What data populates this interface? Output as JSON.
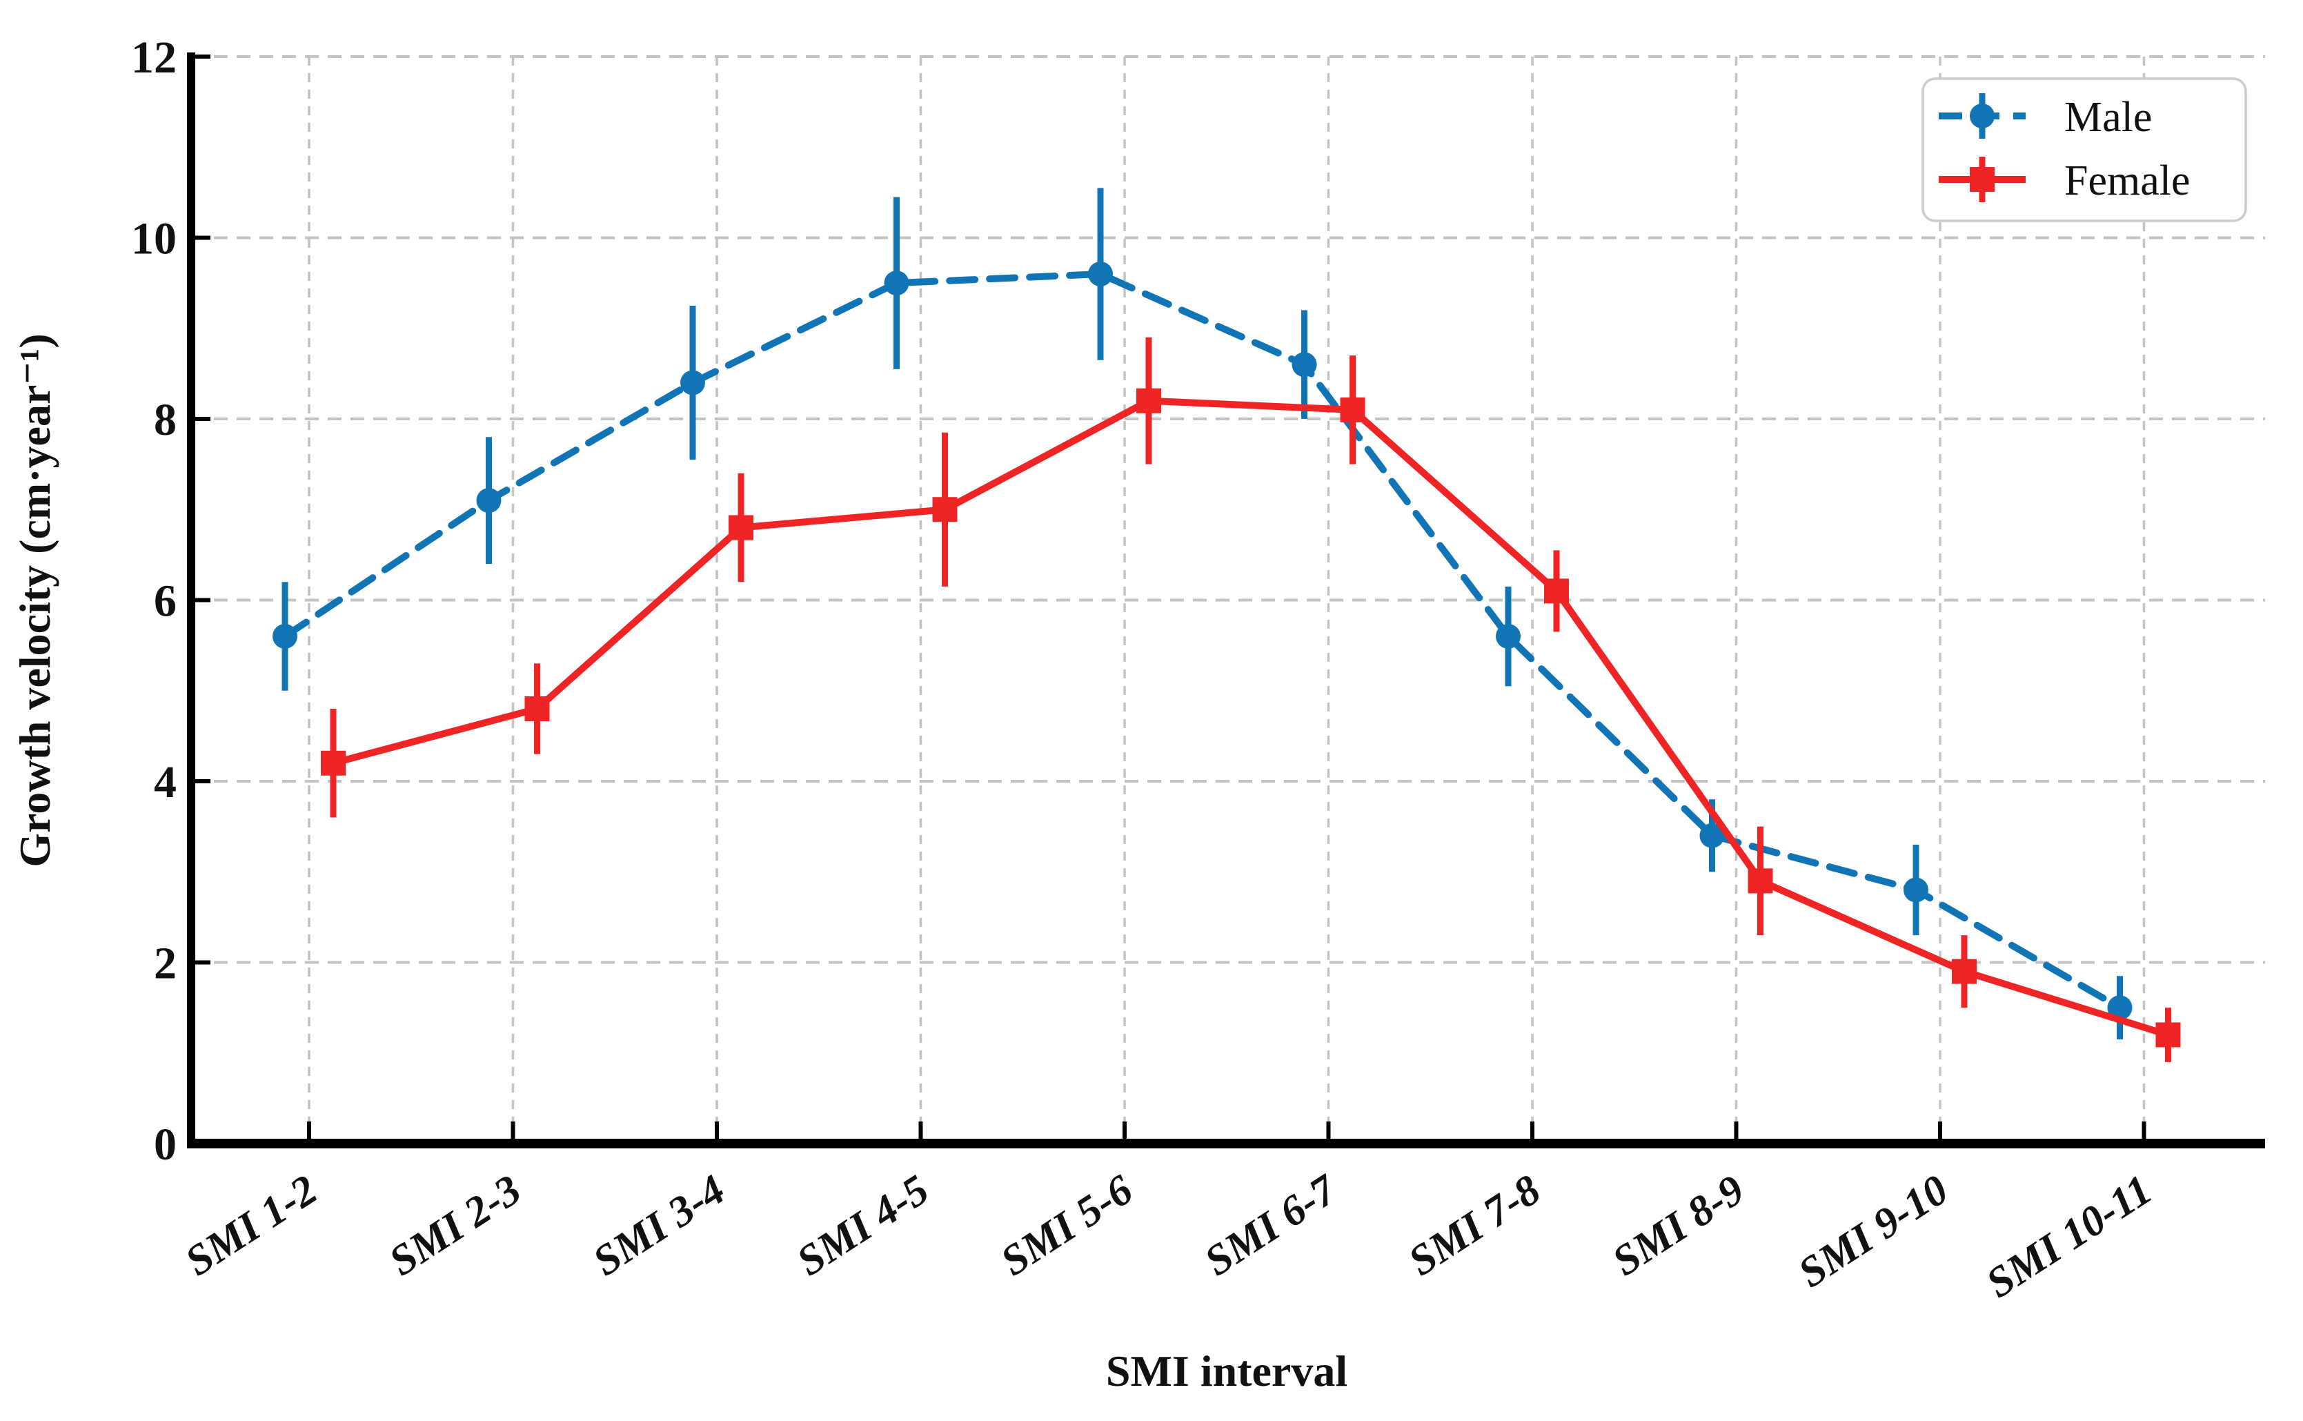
{
  "chart_data": {
    "type": "line",
    "title": "",
    "xlabel": "SMI interval",
    "ylabel": "Growth velocity (cm·year⁻¹)",
    "categories": [
      "SMI 1-2",
      "SMI 2-3",
      "SMI 3-4",
      "SMI 4-5",
      "SMI 5-6",
      "SMI 6-7",
      "SMI 7-8",
      "SMI 8-9",
      "SMI 9-10",
      "SMI 10-11"
    ],
    "ylim": [
      0,
      12
    ],
    "yticks": [
      0,
      2,
      4,
      6,
      8,
      10,
      12
    ],
    "grid": true,
    "legend_position": "upper right",
    "series": [
      {
        "name": "Male",
        "color": "#1174b5",
        "line_style": "dashed",
        "marker": "circle",
        "values": [
          5.6,
          7.1,
          8.4,
          9.5,
          9.6,
          8.6,
          5.6,
          3.4,
          2.8,
          1.5
        ],
        "errors": [
          0.6,
          0.7,
          0.85,
          0.95,
          0.95,
          0.6,
          0.55,
          0.4,
          0.5,
          0.35
        ]
      },
      {
        "name": "Female",
        "color": "#ef2424",
        "line_style": "solid",
        "marker": "square",
        "values": [
          4.2,
          4.8,
          6.8,
          7.0,
          8.2,
          8.1,
          6.1,
          2.9,
          1.9,
          1.2
        ],
        "errors": [
          0.6,
          0.5,
          0.6,
          0.85,
          0.7,
          0.6,
          0.45,
          0.6,
          0.4,
          0.3
        ]
      }
    ],
    "colors": {
      "grid": "#c3c3c3",
      "axis": "#000000",
      "text": "#111111",
      "legend_border": "#cccccc",
      "background": "#ffffff"
    }
  }
}
